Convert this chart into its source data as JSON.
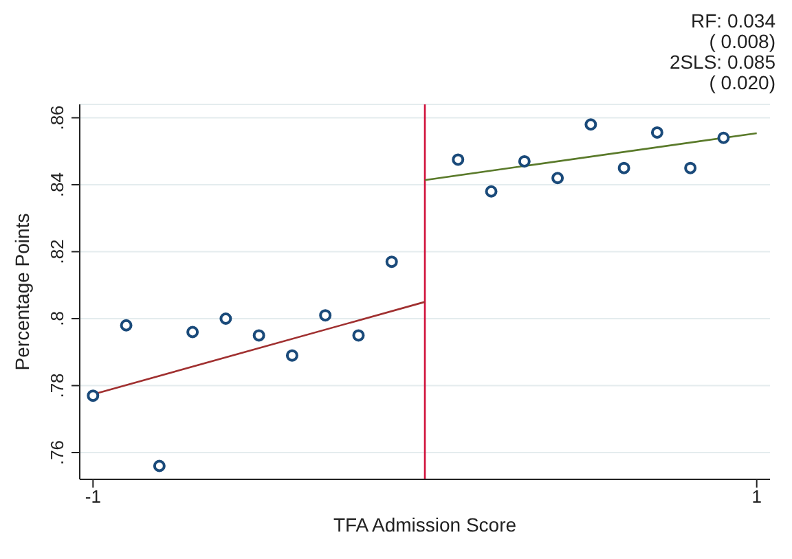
{
  "chart_data": {
    "type": "scatter",
    "xlabel": "TFA Admission Score",
    "ylabel": "Percentage Points",
    "annotations": [
      "RF: 0.034",
      "( 0.008)",
      "2SLS: 0.085",
      "( 0.020)"
    ],
    "series": [
      {
        "color": "#1a4a7a",
        "x": [
          -1,
          -0.9,
          -0.8,
          -0.7,
          -0.6,
          -0.5,
          -0.4,
          -0.3,
          -0.2,
          -0.1
        ],
        "values": [
          0.777,
          0.798,
          0.756,
          0.796,
          0.8,
          0.795,
          0.789,
          0.801,
          0.795,
          0.817
        ]
      },
      {
        "color": "#1a4a7a",
        "x": [
          0.1,
          0.2,
          0.3,
          0.4,
          0.5,
          0.6,
          0.7,
          0.8,
          0.9
        ],
        "values": [
          0.8475,
          0.838,
          0.847,
          0.842,
          0.858,
          0.845,
          0.8556,
          0.845,
          0.854
        ]
      },
      {
        "type": "line",
        "marker": "none",
        "color": "#a03030",
        "x": [
          -1,
          0
        ],
        "values": [
          0.7774,
          0.805
        ]
      },
      {
        "type": "line",
        "marker": "none",
        "color": "#5a7a2a",
        "x": [
          0,
          1
        ],
        "values": [
          0.8414,
          0.8554
        ]
      }
    ],
    "ref_lines": [
      {
        "axis": "x",
        "value": 0,
        "color": "#d0103a"
      }
    ],
    "xlim": [
      -1.04,
      1.04
    ],
    "xticks": [
      -1,
      1
    ],
    "ylim": [
      0.752,
      0.864
    ],
    "yticks": [
      {
        "value": 0.76,
        "label": ".76"
      },
      {
        "value": 0.78,
        "label": ".78"
      },
      {
        "value": 0.8,
        "label": ".8"
      },
      {
        "value": 0.82,
        "label": ".82"
      },
      {
        "value": 0.84,
        "label": ".84"
      },
      {
        "value": 0.86,
        "label": ".86"
      }
    ],
    "grid": "y",
    "legend": false,
    "marker": "circle",
    "line_style": "solid"
  }
}
